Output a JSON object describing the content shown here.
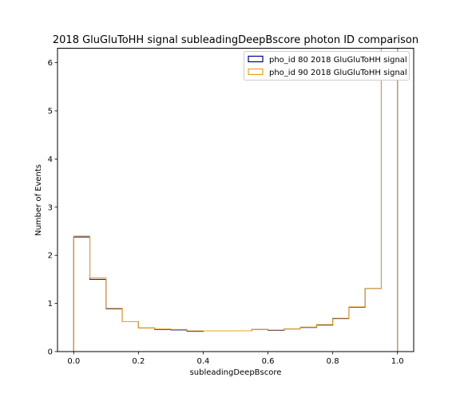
{
  "chart_data": {
    "type": "histogram-step",
    "title": "2018 GluGluToHH signal subleadingDeepBscore photon ID comparison",
    "xlabel": "subleadingDeepBscore",
    "ylabel": "Number of Events",
    "xlim": [
      -0.05,
      1.05
    ],
    "ylim": [
      0,
      6.3
    ],
    "xticks": [
      0.0,
      0.2,
      0.4,
      0.6,
      0.8,
      1.0
    ],
    "xtick_labels": [
      "0.0",
      "0.2",
      "0.4",
      "0.6",
      "0.8",
      "1.0"
    ],
    "yticks": [
      0,
      1,
      2,
      3,
      4,
      5,
      6
    ],
    "ytick_labels": [
      "0",
      "1",
      "2",
      "3",
      "4",
      "5",
      "6"
    ],
    "bin_edges": [
      0.0,
      0.05,
      0.1,
      0.15,
      0.2,
      0.25,
      0.3,
      0.35,
      0.4,
      0.45,
      0.5,
      0.55,
      0.6,
      0.65,
      0.7,
      0.75,
      0.8,
      0.85,
      0.9,
      0.95,
      1.0
    ],
    "grid": false,
    "legend_position": "top-right",
    "series": [
      {
        "name": "pho_id 80 2018 GluGluToHH signal",
        "color": "#00008b",
        "values": [
          2.38,
          1.5,
          0.89,
          0.62,
          0.49,
          0.46,
          0.45,
          0.42,
          0.43,
          0.43,
          0.43,
          0.46,
          0.44,
          0.47,
          0.5,
          0.55,
          0.69,
          0.92,
          1.31,
          6.3
        ]
      },
      {
        "name": "pho_id 90 2018 GluGluToHH signal",
        "color": "#e8a317",
        "values": [
          2.4,
          1.53,
          0.9,
          0.62,
          0.49,
          0.47,
          0.46,
          0.43,
          0.43,
          0.43,
          0.43,
          0.46,
          0.45,
          0.47,
          0.51,
          0.56,
          0.68,
          0.93,
          1.31,
          6.3
        ]
      }
    ]
  }
}
